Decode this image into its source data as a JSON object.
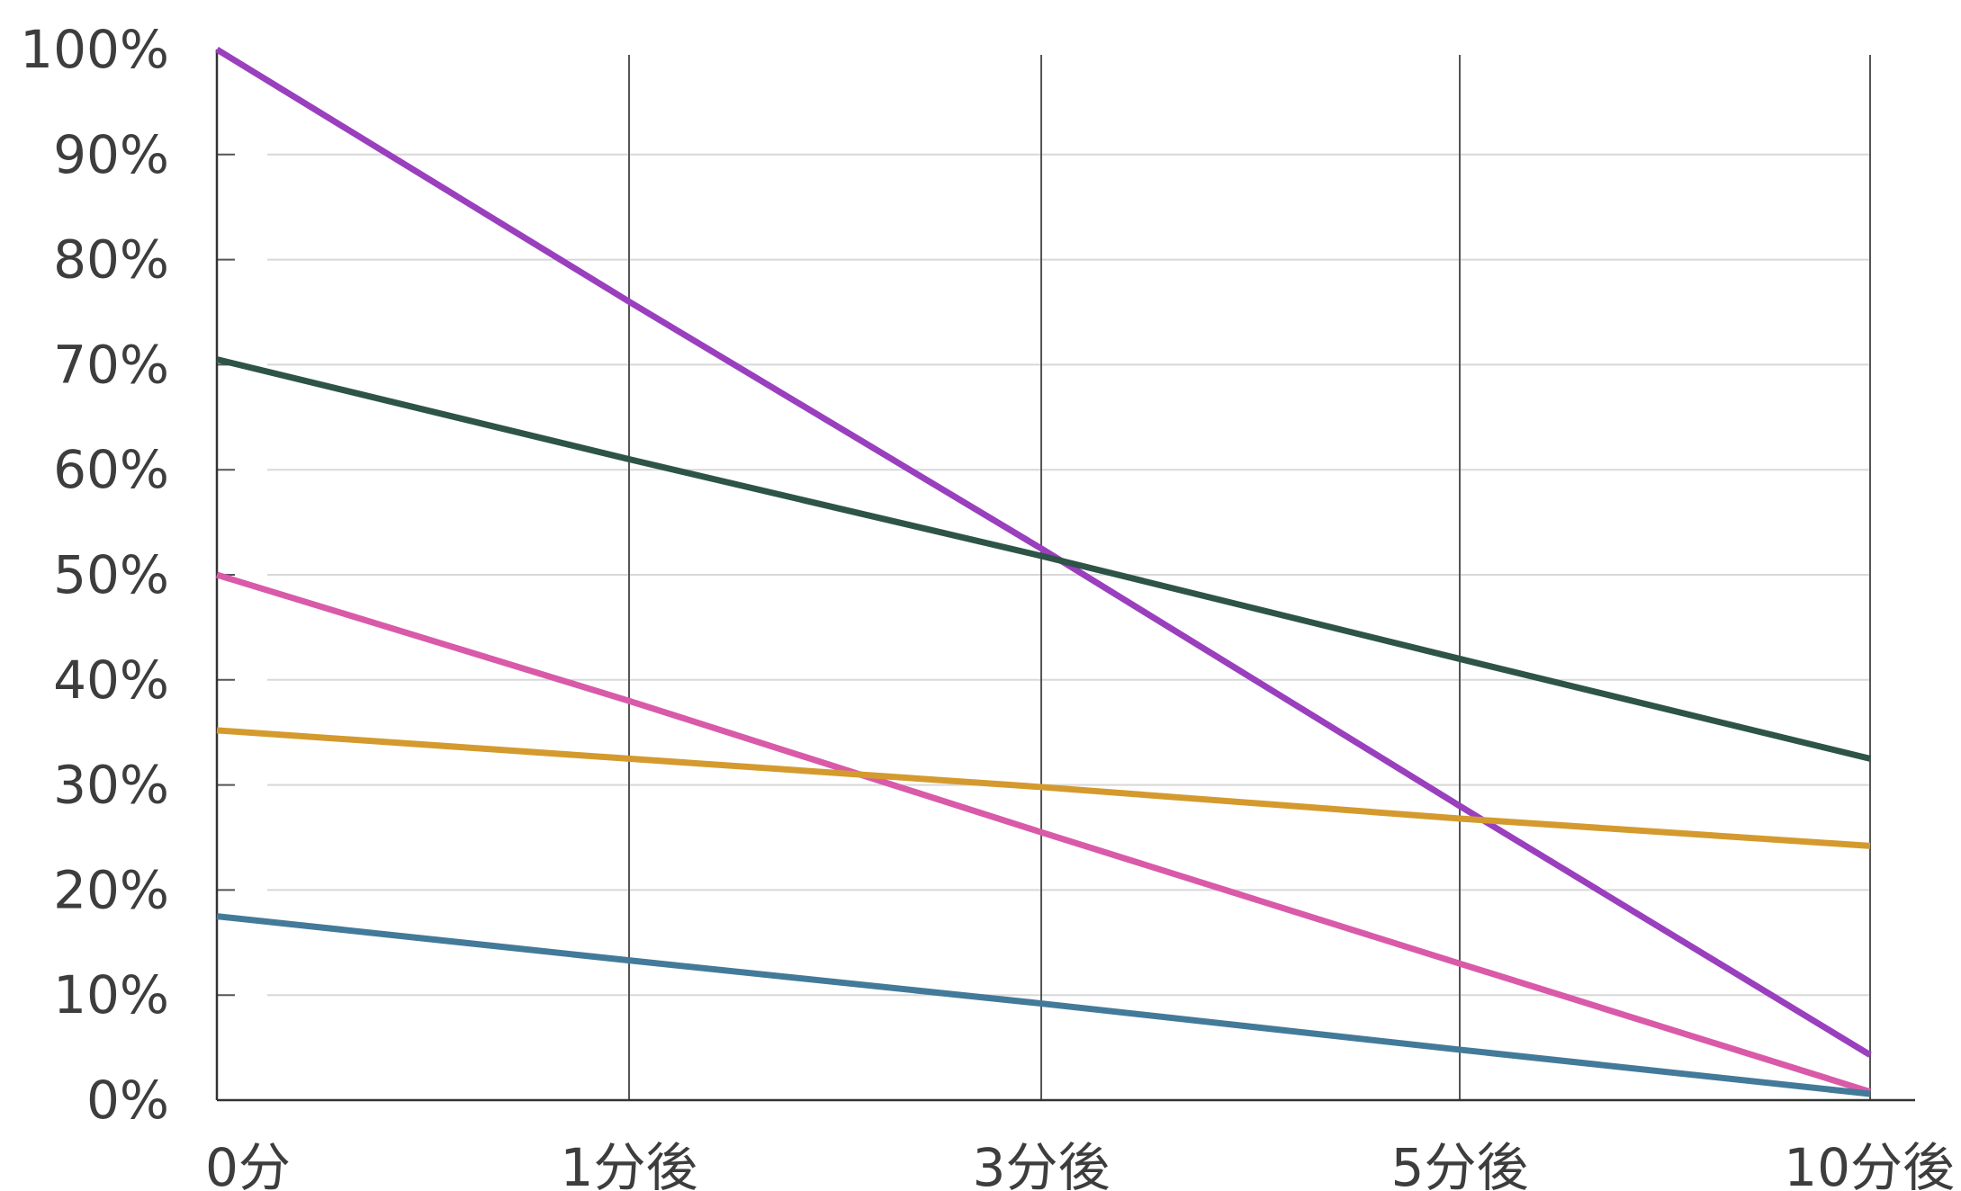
{
  "chart_data": {
    "type": "line",
    "categories": [
      "0分",
      "1分後",
      "3分後",
      "5分後",
      "10分後"
    ],
    "y_tick_labels": [
      "0%",
      "10%",
      "20%",
      "30%",
      "40%",
      "50%",
      "60%",
      "70%",
      "80%",
      "90%",
      "100%"
    ],
    "ylim": [
      0,
      100
    ],
    "y_unit": "%",
    "grid": {
      "horizontal": true,
      "vertical": true
    },
    "legend": "none",
    "series": [
      {
        "color": "#9a3fbe",
        "values": [
          100,
          76,
          52.5,
          28,
          4.3
        ]
      },
      {
        "color": "#2e5447",
        "values": [
          70.5,
          61,
          51.8,
          42,
          32.5
        ]
      },
      {
        "color": "#d95aa8",
        "values": [
          50,
          38,
          25.5,
          13,
          0.8
        ]
      },
      {
        "color": "#d49a2e",
        "values": [
          35.2,
          32.5,
          29.8,
          26.8,
          24.2
        ]
      },
      {
        "color": "#437a9a",
        "values": [
          17.5,
          13.3,
          9.2,
          4.8,
          0.6
        ]
      }
    ]
  }
}
